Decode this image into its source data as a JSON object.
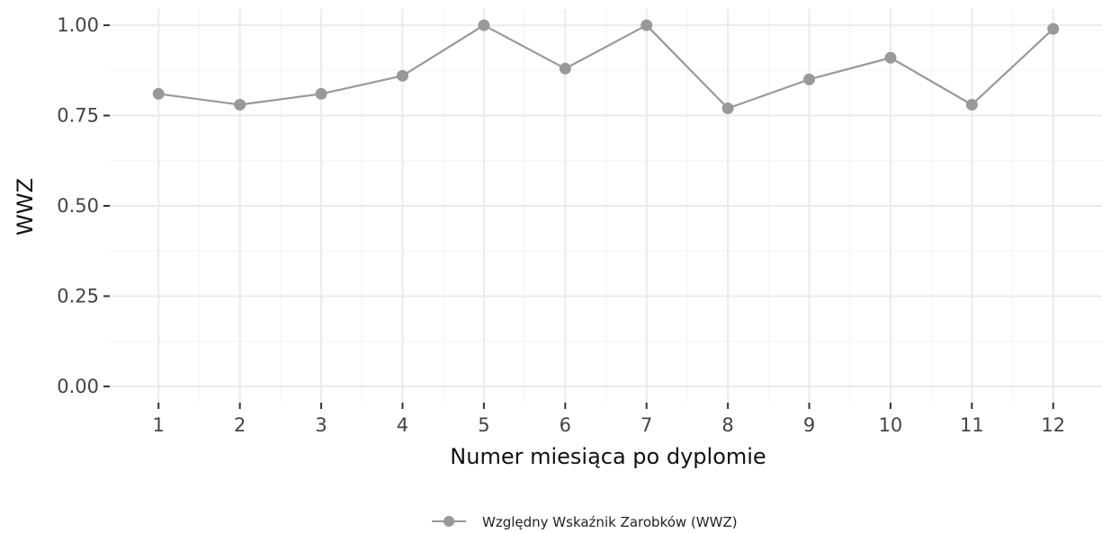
{
  "chart_data": {
    "type": "line",
    "x": [
      1,
      2,
      3,
      4,
      5,
      6,
      7,
      8,
      9,
      10,
      11,
      12
    ],
    "x_tick_labels": [
      "1",
      "2",
      "3",
      "4",
      "5",
      "6",
      "7",
      "8",
      "9",
      "10",
      "11",
      "12"
    ],
    "series": [
      {
        "name": "Względny Wskaźnik Zarobków (WWZ)",
        "values": [
          0.81,
          0.78,
          0.81,
          0.86,
          1.0,
          0.88,
          1.0,
          0.77,
          0.85,
          0.91,
          0.78,
          0.99
        ],
        "color": "#999999"
      }
    ],
    "xlabel": "Numer miesiąca po dyplomie",
    "ylabel": "WWZ",
    "ylim": [
      0,
      1
    ],
    "y_ticks": [
      0,
      0.25,
      0.5,
      0.75,
      1.0
    ],
    "y_tick_labels": [
      "0.00",
      "0.25",
      "0.50",
      "0.75",
      "1.00"
    ],
    "grid": true,
    "legend_position": "bottom"
  },
  "colors": {
    "grid_major": "#ebebeb",
    "grid_minor": "#f5f5f5",
    "tick_mark": "#333333"
  }
}
